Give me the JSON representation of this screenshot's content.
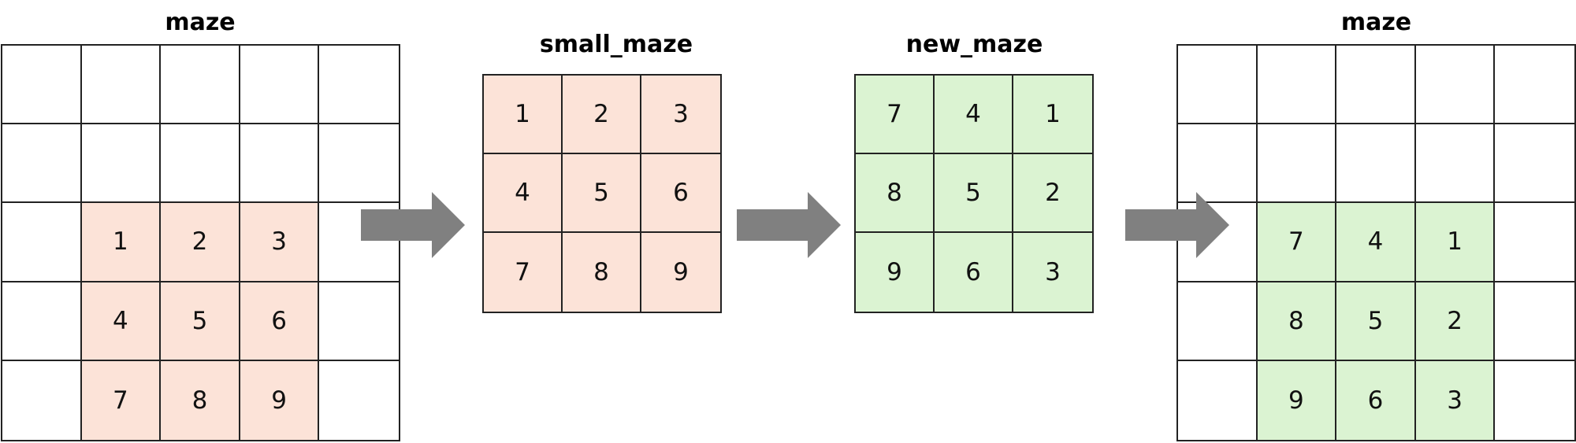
{
  "titles": {
    "maze_left": "maze",
    "small_maze": "small_maze",
    "new_maze": "new_maze",
    "maze_right": "maze"
  },
  "colors": {
    "orange_fill": "#fce3d8",
    "green_fill": "#dbf3d2",
    "arrow_fill": "#808080"
  },
  "maze_left": [
    [
      "",
      "",
      "",
      "",
      ""
    ],
    [
      "",
      "",
      "",
      "",
      ""
    ],
    [
      "",
      "1",
      "2",
      "3",
      ""
    ],
    [
      "",
      "4",
      "5",
      "6",
      ""
    ],
    [
      "",
      "7",
      "8",
      "9",
      ""
    ]
  ],
  "small_maze": [
    [
      "1",
      "2",
      "3"
    ],
    [
      "4",
      "5",
      "6"
    ],
    [
      "7",
      "8",
      "9"
    ]
  ],
  "new_maze": [
    [
      "7",
      "4",
      "1"
    ],
    [
      "8",
      "5",
      "2"
    ],
    [
      "9",
      "6",
      "3"
    ]
  ],
  "maze_right": [
    [
      "",
      "",
      "",
      "",
      ""
    ],
    [
      "",
      "",
      "",
      "",
      ""
    ],
    [
      "",
      "7",
      "4",
      "1",
      ""
    ],
    [
      "",
      "8",
      "5",
      "2",
      ""
    ],
    [
      "",
      "9",
      "6",
      "3",
      ""
    ]
  ]
}
